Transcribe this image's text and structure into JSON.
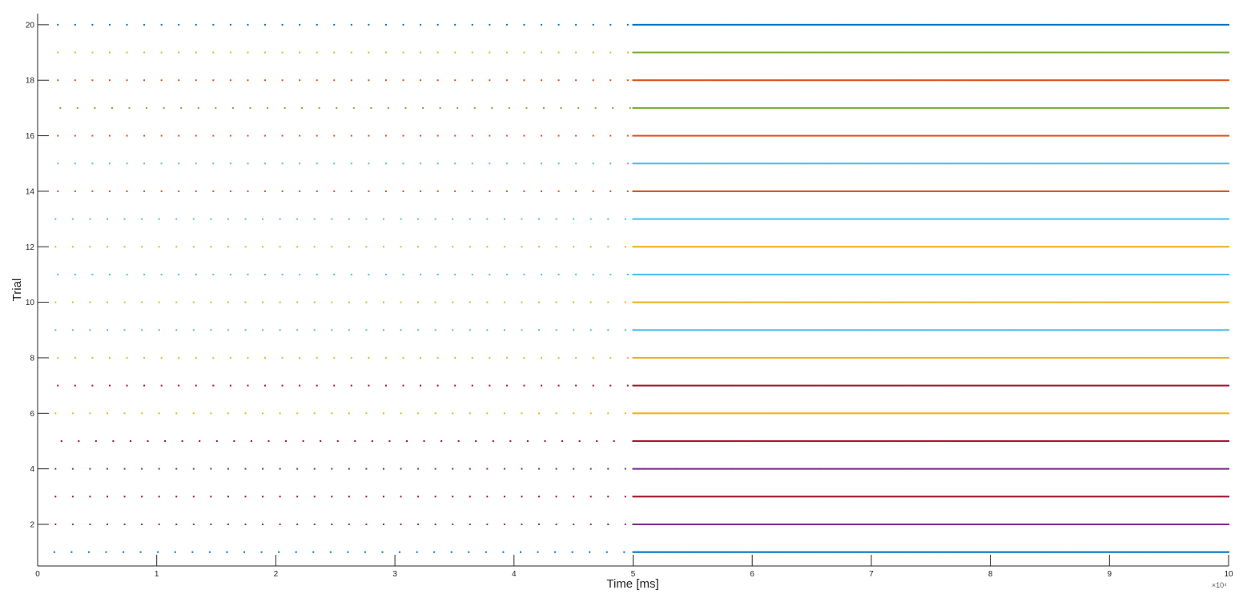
{
  "chart_data": {
    "type": "scatter",
    "title": "",
    "xlabel": "Time [ms]",
    "ylabel": "Trial",
    "x_exponent_label": "×10⁴",
    "xlim": [
      0,
      100000
    ],
    "ylim": [
      0.5,
      20.4
    ],
    "x_ticks": [
      0,
      10000,
      20000,
      30000,
      40000,
      50000,
      60000,
      70000,
      80000,
      90000,
      100000
    ],
    "x_tick_labels": [
      "0",
      "1",
      "2",
      "3",
      "4",
      "5",
      "6",
      "7",
      "8",
      "9",
      "10"
    ],
    "y_ticks": [
      2,
      4,
      6,
      8,
      10,
      12,
      14,
      16,
      18,
      20
    ],
    "y_tick_labels": [
      "2",
      "4",
      "6",
      "8",
      "10",
      "12",
      "14",
      "16",
      "18",
      "20"
    ],
    "grid": false,
    "legend": "none",
    "series": [
      {
        "trial": 1,
        "color": "#0072BD",
        "isi_phase1_ms": 1450,
        "isi_phase2_ms": 100,
        "phase_boundary_ms": 50000,
        "offset_ms": 1400
      },
      {
        "trial": 2,
        "color": "#7E2F8E",
        "isi_phase1_ms": 1450,
        "isi_phase2_ms": 100,
        "phase_boundary_ms": 50000,
        "offset_ms": 1500
      },
      {
        "trial": 3,
        "color": "#A2142F",
        "isi_phase1_ms": 1450,
        "isi_phase2_ms": 100,
        "phase_boundary_ms": 50000,
        "offset_ms": 1500
      },
      {
        "trial": 4,
        "color": "#7E2F8E",
        "isi_phase1_ms": 1450,
        "isi_phase2_ms": 100,
        "phase_boundary_ms": 50000,
        "offset_ms": 1500
      },
      {
        "trial": 5,
        "color": "#A2142F",
        "isi_phase1_ms": 1450,
        "isi_phase2_ms": 100,
        "phase_boundary_ms": 50000,
        "offset_ms": 2000
      },
      {
        "trial": 6,
        "color": "#EDB120",
        "isi_phase1_ms": 1450,
        "isi_phase2_ms": 100,
        "phase_boundary_ms": 50000,
        "offset_ms": 1500
      },
      {
        "trial": 7,
        "color": "#A2142F",
        "isi_phase1_ms": 1450,
        "isi_phase2_ms": 100,
        "phase_boundary_ms": 50000,
        "offset_ms": 1700
      },
      {
        "trial": 8,
        "color": "#EDB120",
        "isi_phase1_ms": 1450,
        "isi_phase2_ms": 100,
        "phase_boundary_ms": 50000,
        "offset_ms": 1700
      },
      {
        "trial": 9,
        "color": "#4DBEEE",
        "isi_phase1_ms": 1450,
        "isi_phase2_ms": 100,
        "phase_boundary_ms": 50000,
        "offset_ms": 1500
      },
      {
        "trial": 10,
        "color": "#EDB120",
        "isi_phase1_ms": 1450,
        "isi_phase2_ms": 100,
        "phase_boundary_ms": 50000,
        "offset_ms": 1500
      },
      {
        "trial": 11,
        "color": "#4DBEEE",
        "isi_phase1_ms": 1450,
        "isi_phase2_ms": 100,
        "phase_boundary_ms": 50000,
        "offset_ms": 1700
      },
      {
        "trial": 12,
        "color": "#EDB120",
        "isi_phase1_ms": 1450,
        "isi_phase2_ms": 100,
        "phase_boundary_ms": 50000,
        "offset_ms": 1500
      },
      {
        "trial": 13,
        "color": "#4DBEEE",
        "isi_phase1_ms": 1450,
        "isi_phase2_ms": 100,
        "phase_boundary_ms": 50000,
        "offset_ms": 1500
      },
      {
        "trial": 14,
        "color": "#D95319",
        "isi_phase1_ms": 1450,
        "isi_phase2_ms": 100,
        "phase_boundary_ms": 50000,
        "offset_ms": 1700
      },
      {
        "trial": 15,
        "color": "#4DBEEE",
        "isi_phase1_ms": 1450,
        "isi_phase2_ms": 100,
        "phase_boundary_ms": 50000,
        "offset_ms": 1700
      },
      {
        "trial": 16,
        "color": "#D95319",
        "isi_phase1_ms": 1450,
        "isi_phase2_ms": 100,
        "phase_boundary_ms": 50000,
        "offset_ms": 1700
      },
      {
        "trial": 17,
        "color": "#77AC30",
        "isi_phase1_ms": 1450,
        "isi_phase2_ms": 100,
        "phase_boundary_ms": 50000,
        "offset_ms": 1900
      },
      {
        "trial": 18,
        "color": "#D95319",
        "isi_phase1_ms": 1450,
        "isi_phase2_ms": 100,
        "phase_boundary_ms": 50000,
        "offset_ms": 1700
      },
      {
        "trial": 19,
        "color": "#EDB120",
        "isi_phase1_ms": 1450,
        "isi_phase2_ms": 100,
        "phase_boundary_ms": 50000,
        "offset_ms": 1700
      },
      {
        "trial": 20,
        "color": "#0072BD",
        "isi_phase1_ms": 1450,
        "isi_phase2_ms": 100,
        "phase_boundary_ms": 50000,
        "offset_ms": 1700
      }
    ],
    "phase2_line_colors": {
      "20": "#0072BD",
      "19": "#77AC30",
      "18": "#D95319",
      "17": "#77AC30",
      "16": "#D95319",
      "15": "#4DBEEE",
      "14": "#D95319",
      "13": "#4DBEEE",
      "12": "#EDB120",
      "11": "#4DBEEE",
      "10": "#EDB120",
      "9": "#4DBEEE",
      "8": "#EDB120",
      "7": "#A2142F",
      "6": "#EDB120",
      "5": "#A2142F",
      "4": "#7E2F8E",
      "3": "#A2142F",
      "2": "#7E2F8E",
      "1": "#0072BD"
    }
  }
}
